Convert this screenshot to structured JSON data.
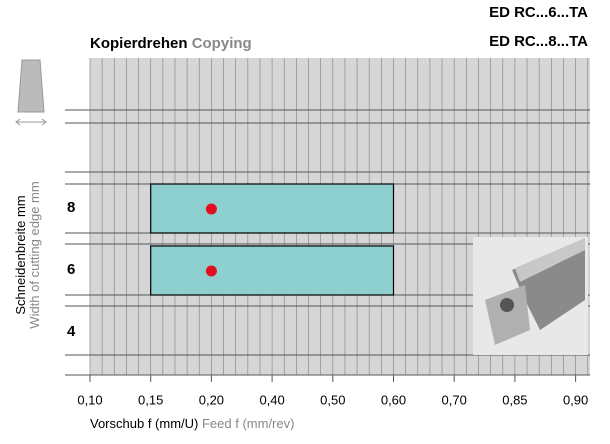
{
  "chart_data": {
    "type": "range-bar",
    "title": "Kopierdrehen",
    "title_en": "Copying",
    "codes": [
      "ED RC...6...TA",
      "ED RC...8...TA"
    ],
    "y_label": "Schneidenbreite mm",
    "y_label_en": "Width of cutting edge mm",
    "x_label": "Vorschub f (mm/U)",
    "x_label_en": "Feed f (mm/rev)",
    "categories": [
      "8",
      "6",
      "4"
    ],
    "ranges": [
      [
        0.15,
        0.6
      ],
      [
        0.15,
        0.6
      ],
      null
    ],
    "recommended": [
      0.2,
      0.2,
      null
    ],
    "color": "#8ecfcf",
    "dot_color": "#e0101e",
    "xlim": [
      0.1,
      0.9
    ],
    "xticks": [
      {
        "value": 0.1,
        "label": "0,10"
      },
      {
        "value": 0.15,
        "label": "0,15"
      },
      {
        "value": 0.2,
        "label": "0,20"
      },
      {
        "value": 0.4,
        "label": "0,40"
      },
      {
        "value": 0.5,
        "label": "0,50"
      },
      {
        "value": 0.6,
        "label": "0,60"
      },
      {
        "value": 0.7,
        "label": "0,70"
      },
      {
        "value": 0.85,
        "label": "0,85"
      },
      {
        "value": 0.9,
        "label": "0,90"
      }
    ]
  }
}
